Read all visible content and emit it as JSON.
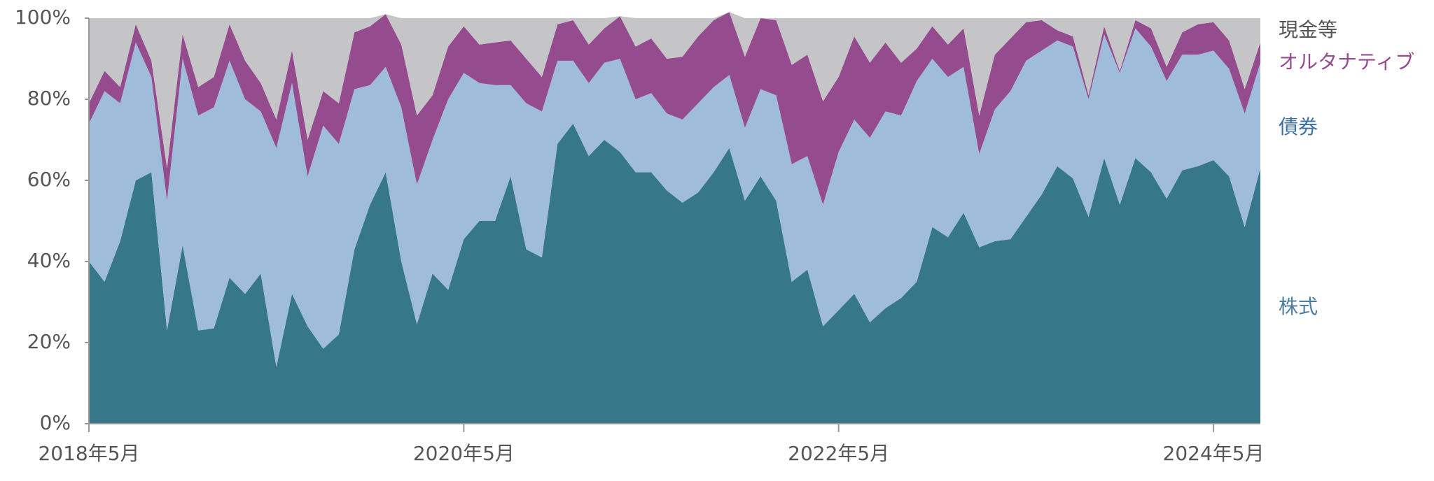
{
  "chart_data": {
    "type": "stacked_area",
    "categories": [
      "2018年5月",
      null,
      null,
      null,
      null,
      null,
      null,
      null,
      null,
      null,
      null,
      null,
      null,
      null,
      null,
      null,
      null,
      null,
      null,
      null,
      null,
      null,
      null,
      null,
      "2020年5月",
      null,
      null,
      null,
      null,
      null,
      null,
      null,
      null,
      null,
      null,
      null,
      null,
      null,
      null,
      null,
      null,
      null,
      null,
      null,
      null,
      null,
      null,
      null,
      "2022年5月",
      null,
      null,
      null,
      null,
      null,
      null,
      null,
      null,
      null,
      null,
      null,
      null,
      null,
      null,
      null,
      null,
      null,
      null,
      null,
      null,
      null,
      null,
      null,
      "2024年5月",
      null,
      null,
      null
    ],
    "series": [
      {
        "name": "株式",
        "color": "#36788a",
        "values": [
          40,
          35,
          45,
          60,
          62,
          23,
          44,
          23,
          23.5,
          36,
          32,
          37,
          14,
          32,
          24,
          18.5,
          22,
          43,
          54,
          62,
          40,
          24.5,
          37,
          33,
          45.5,
          50,
          50,
          61,
          43,
          41,
          69,
          74,
          66,
          70,
          67,
          62,
          62,
          57.5,
          54.5,
          57,
          62,
          68,
          55,
          61,
          55,
          35,
          38,
          24,
          28,
          32,
          25,
          28.5,
          31,
          35,
          48.5,
          46,
          52,
          43.5,
          45,
          45.5,
          51,
          56.5,
          63.5,
          60.5,
          51,
          65.5,
          54,
          65.5,
          62,
          55.5,
          62.5,
          63.5,
          65,
          61,
          48.5,
          63
        ]
      },
      {
        "name": "債券",
        "color": "#a0bcdb",
        "values": [
          34,
          47,
          34,
          34,
          23.5,
          32,
          46,
          53,
          54.5,
          53.5,
          48,
          40,
          54,
          52,
          37,
          55,
          47,
          39.5,
          29.5,
          26,
          38,
          34.5,
          33,
          47,
          41,
          34,
          33.5,
          22.5,
          36,
          36,
          20.5,
          15.5,
          18,
          19,
          23,
          18,
          19.5,
          19,
          20.5,
          22,
          21,
          18,
          18,
          21.5,
          26,
          29,
          28,
          30,
          39,
          43,
          45.5,
          48.5,
          45,
          49.5,
          41.5,
          39.5,
          36,
          23,
          32.5,
          36.5,
          38.5,
          35.5,
          31,
          32.5,
          29,
          30.5,
          32.5,
          32,
          31,
          29,
          28.5,
          27.5,
          27,
          26.5,
          28,
          26
        ]
      },
      {
        "name": "オルタナティブ",
        "color": "#944c8f",
        "values": [
          5,
          5,
          4,
          4.5,
          4,
          8,
          6,
          7,
          7.5,
          9,
          9.5,
          7,
          7,
          8,
          9,
          8.5,
          10,
          14,
          14.5,
          13,
          15.5,
          17,
          11,
          13,
          11.5,
          9.5,
          10.5,
          11,
          11,
          8.5,
          9,
          10,
          9.5,
          8.5,
          10.5,
          13,
          13.5,
          13.5,
          15.5,
          16.5,
          16.5,
          15.5,
          17.5,
          17.5,
          18.5,
          24.5,
          25,
          25.5,
          18.5,
          20.5,
          18.5,
          17,
          13,
          8,
          8,
          8,
          9.5,
          9.5,
          13.5,
          13,
          9.5,
          7.5,
          2.5,
          2.5,
          1,
          2,
          0.5,
          2,
          4.5,
          3.5,
          5.5,
          7.5,
          7,
          7,
          6,
          5
        ]
      },
      {
        "name": "現金等",
        "color": "#c5c5c7",
        "values": [
          21,
          13,
          17,
          1.5,
          10.5,
          37,
          4,
          17,
          14.5,
          1.5,
          10.5,
          16,
          25,
          8,
          30,
          18,
          21,
          3.5,
          2,
          0,
          6.5,
          24,
          19,
          7,
          2,
          6.5,
          6,
          5.5,
          10,
          14.5,
          1.5,
          0.5,
          6.5,
          2.5,
          0,
          7,
          5,
          10,
          9.5,
          4.5,
          0.5,
          0,
          9.5,
          0,
          0.5,
          11.5,
          9,
          20.5,
          14.5,
          4.5,
          11,
          6,
          11,
          7.5,
          2,
          6.5,
          2.5,
          24,
          9,
          5,
          1,
          0.5,
          3,
          4.5,
          19,
          2,
          13,
          0.5,
          2.5,
          12,
          3.5,
          1.5,
          1,
          5.5,
          17.5,
          6
        ]
      }
    ],
    "ylim": [
      0,
      100
    ],
    "yticks": [
      {
        "value": 0,
        "label": "0%"
      },
      {
        "value": 20,
        "label": "20%"
      },
      {
        "value": 40,
        "label": "40%"
      },
      {
        "value": 60,
        "label": "60%"
      },
      {
        "value": 80,
        "label": "80%"
      },
      {
        "value": 100,
        "label": "100%"
      }
    ],
    "grid": false
  }
}
